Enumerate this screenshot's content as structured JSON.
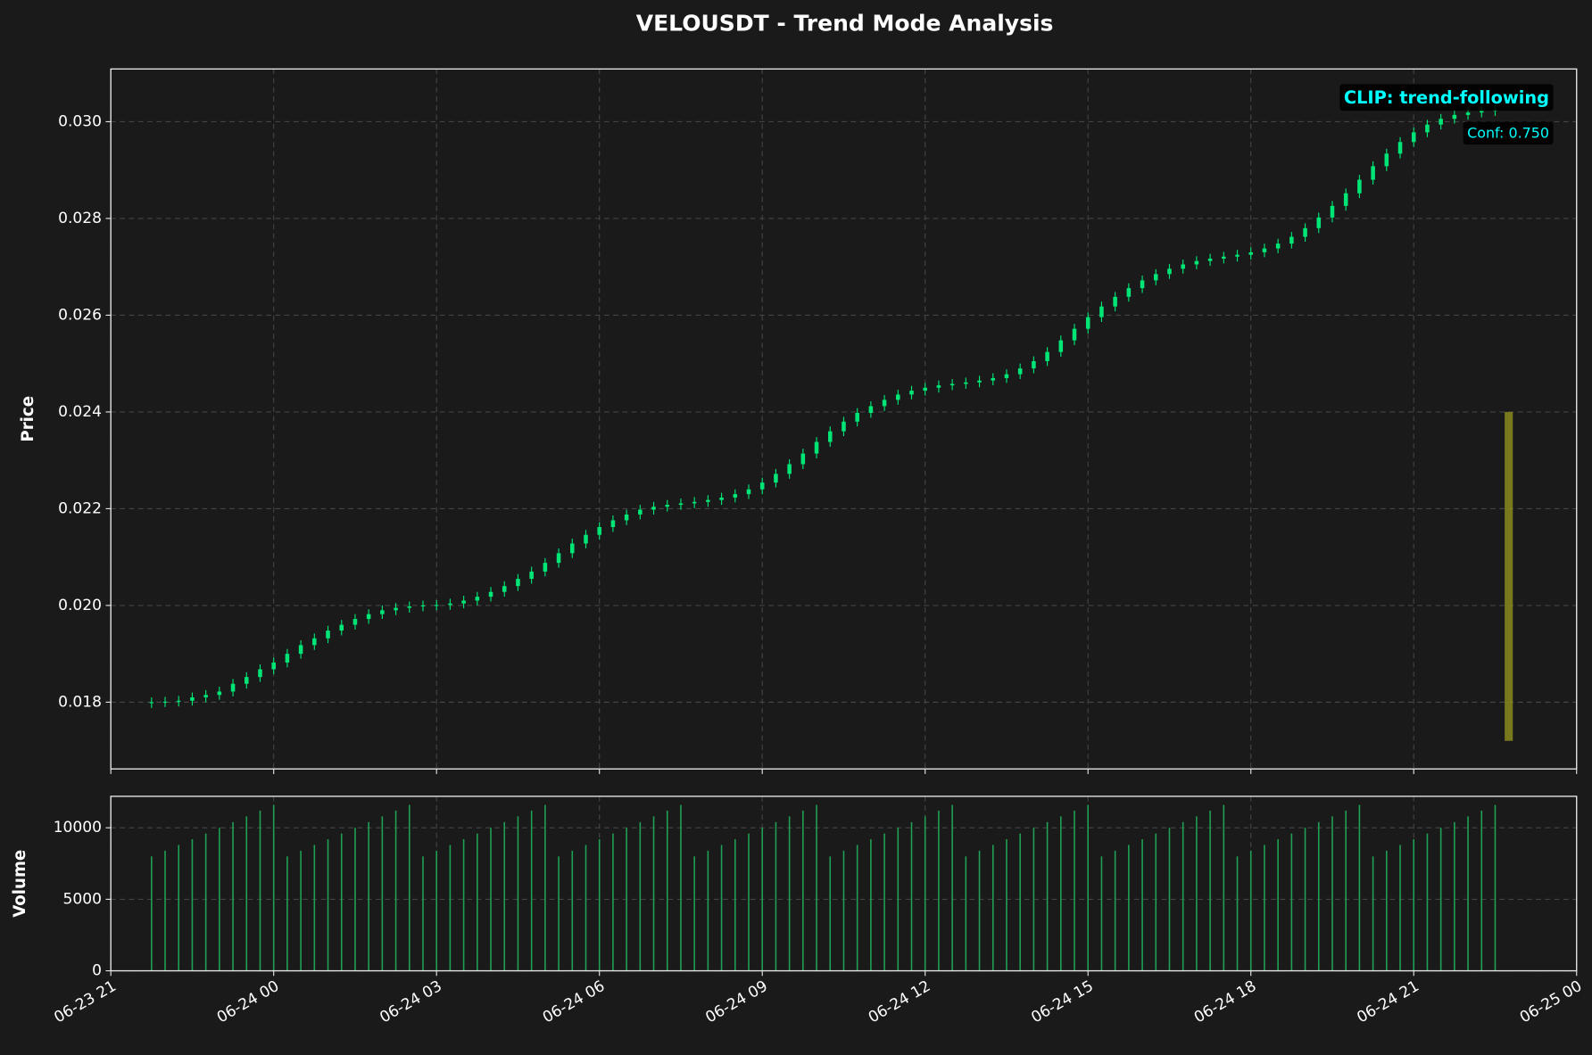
{
  "chart_data": {
    "type": "candlestick",
    "title": "VELOUSDT - Trend Mode Analysis",
    "ylabel": "Price",
    "color": "#00e676",
    "grid": true,
    "xlim": [
      "06-23 21",
      "06-25 00"
    ],
    "xticks": [
      "06-23 21",
      "06-24 00",
      "06-24 03",
      "06-24 06",
      "06-24 09",
      "06-24 12",
      "06-24 15",
      "06-24 18",
      "06-24 21",
      "06-25 00"
    ],
    "ylim": [
      0.01662,
      0.03109
    ],
    "yticks": [
      0.018,
      {
        "value": 0.02,
        "label": "0.020"
      },
      0.022,
      0.024,
      0.026,
      0.028,
      {
        "value": 0.03,
        "label": "0.030"
      }
    ],
    "x": [
      "06-23 21:45",
      "06-23 22:00",
      "06-23 22:15",
      "06-23 22:30",
      "06-23 22:45",
      "06-23 23:00",
      "06-23 23:15",
      "06-23 23:30",
      "06-23 23:45",
      "06-24 00:00",
      "06-24 00:15",
      "06-24 00:30",
      "06-24 00:45",
      "06-24 01:00",
      "06-24 01:15",
      "06-24 01:30",
      "06-24 01:45",
      "06-24 02:00",
      "06-24 02:15",
      "06-24 02:30",
      "06-24 02:45",
      "06-24 03:00",
      "06-24 03:15",
      "06-24 03:30",
      "06-24 03:45",
      "06-24 04:00",
      "06-24 04:15",
      "06-24 04:30",
      "06-24 04:45",
      "06-24 05:00",
      "06-24 05:15",
      "06-24 05:30",
      "06-24 05:45",
      "06-24 06:00",
      "06-24 06:15",
      "06-24 06:30",
      "06-24 06:45",
      "06-24 07:00",
      "06-24 07:15",
      "06-24 07:30",
      "06-24 07:45",
      "06-24 08:00",
      "06-24 08:15",
      "06-24 08:30",
      "06-24 08:45",
      "06-24 09:00",
      "06-24 09:15",
      "06-24 09:30",
      "06-24 09:45",
      "06-24 10:00",
      "06-24 10:15",
      "06-24 10:30",
      "06-24 10:45",
      "06-24 11:00",
      "06-24 11:15",
      "06-24 11:30",
      "06-24 11:45",
      "06-24 12:00",
      "06-24 12:15",
      "06-24 12:30",
      "06-24 12:45",
      "06-24 13:00",
      "06-24 13:15",
      "06-24 13:30",
      "06-24 13:45",
      "06-24 14:00",
      "06-24 14:15",
      "06-24 14:30",
      "06-24 14:45",
      "06-24 15:00",
      "06-24 15:15",
      "06-24 15:30",
      "06-24 15:45",
      "06-24 16:00",
      "06-24 16:15",
      "06-24 16:30",
      "06-24 16:45",
      "06-24 17:00",
      "06-24 17:15",
      "06-24 17:30",
      "06-24 17:45",
      "06-24 18:00",
      "06-24 18:15",
      "06-24 18:30",
      "06-24 18:45",
      "06-24 19:00",
      "06-24 19:15",
      "06-24 19:30",
      "06-24 19:45",
      "06-24 20:00",
      "06-24 20:15",
      "06-24 20:30",
      "06-24 20:45",
      "06-24 21:00",
      "06-24 21:15",
      "06-24 21:30",
      "06-24 21:45",
      "06-24 22:00",
      "06-24 22:15",
      "06-24 22:30"
    ],
    "open": [
      0.01798,
      0.018,
      0.01801,
      0.01803,
      0.0181,
      0.01815,
      0.01822,
      0.01838,
      0.01852,
      0.01868,
      0.01882,
      0.019,
      0.01918,
      0.01932,
      0.01948,
      0.0196,
      0.01972,
      0.01982,
      0.0199,
      0.01995,
      0.01998,
      0.02,
      0.02001,
      0.02004,
      0.0201,
      0.02018,
      0.02028,
      0.0204,
      0.02055,
      0.0207,
      0.02088,
      0.02108,
      0.02128,
      0.02146,
      0.02162,
      0.02176,
      0.02188,
      0.02198,
      0.02204,
      0.02208,
      0.02211,
      0.02214,
      0.02218,
      0.02223,
      0.0223,
      0.0224,
      0.02254,
      0.02272,
      0.02292,
      0.02314,
      0.02338,
      0.0236,
      0.0238,
      0.02398,
      0.02412,
      0.02425,
      0.02436,
      0.02444,
      0.0245,
      0.02455,
      0.02458,
      0.02461,
      0.02465,
      0.0247,
      0.02478,
      0.0249,
      0.02505,
      0.02524,
      0.02548,
      0.02572,
      0.02596,
      0.02618,
      0.02638,
      0.02656,
      0.02672,
      0.02685,
      0.02696,
      0.02705,
      0.02712,
      0.02717,
      0.02721,
      0.02725,
      0.0273,
      0.02738,
      0.02748,
      0.02762,
      0.0278,
      0.02802,
      0.02826,
      0.02852,
      0.0288,
      0.02908,
      0.02934,
      0.02958,
      0.02978,
      0.02994,
      0.03006,
      0.03014,
      0.03019,
      0.03022
    ],
    "high": [
      0.0181,
      0.01811,
      0.01813,
      0.0182,
      0.01825,
      0.01832,
      0.01848,
      0.01862,
      0.01878,
      0.01892,
      0.0191,
      0.01928,
      0.01942,
      0.01958,
      0.0197,
      0.01982,
      0.01992,
      0.02,
      0.02005,
      0.02008,
      0.0201,
      0.02011,
      0.02014,
      0.0202,
      0.02028,
      0.02038,
      0.0205,
      0.02065,
      0.0208,
      0.02098,
      0.02118,
      0.02138,
      0.02156,
      0.02172,
      0.02186,
      0.02198,
      0.02208,
      0.02214,
      0.02218,
      0.02221,
      0.02224,
      0.02228,
      0.02233,
      0.0224,
      0.0225,
      0.02264,
      0.02282,
      0.02302,
      0.02324,
      0.02348,
      0.0237,
      0.0239,
      0.02408,
      0.02422,
      0.02435,
      0.02446,
      0.02454,
      0.0246,
      0.02465,
      0.02468,
      0.02471,
      0.02475,
      0.0248,
      0.02488,
      0.025,
      0.02515,
      0.02534,
      0.02558,
      0.02582,
      0.02606,
      0.02628,
      0.02648,
      0.02666,
      0.02682,
      0.02695,
      0.02706,
      0.02715,
      0.02722,
      0.02727,
      0.02731,
      0.02735,
      0.0274,
      0.02748,
      0.02758,
      0.02772,
      0.0279,
      0.02812,
      0.02836,
      0.02862,
      0.0289,
      0.02918,
      0.02944,
      0.02968,
      0.02988,
      0.03004,
      0.03016,
      0.03024,
      0.03029,
      0.03032,
      0.03034
    ],
    "low": [
      0.01788,
      0.0179,
      0.01791,
      0.01793,
      0.018,
      0.01805,
      0.01812,
      0.01828,
      0.01842,
      0.01858,
      0.01872,
      0.0189,
      0.01908,
      0.01922,
      0.01938,
      0.0195,
      0.01962,
      0.01972,
      0.0198,
      0.01985,
      0.01988,
      0.0199,
      0.01991,
      0.01994,
      0.02,
      0.02008,
      0.02018,
      0.0203,
      0.02045,
      0.0206,
      0.02078,
      0.02098,
      0.02118,
      0.02136,
      0.02152,
      0.02166,
      0.02178,
      0.02188,
      0.02194,
      0.02198,
      0.02201,
      0.02204,
      0.02208,
      0.02213,
      0.0222,
      0.0223,
      0.02244,
      0.02262,
      0.02282,
      0.02304,
      0.02328,
      0.0235,
      0.0237,
      0.02388,
      0.02402,
      0.02415,
      0.02426,
      0.02434,
      0.0244,
      0.02445,
      0.02448,
      0.02451,
      0.02455,
      0.0246,
      0.02468,
      0.0248,
      0.02495,
      0.02514,
      0.02538,
      0.02562,
      0.02586,
      0.02608,
      0.02628,
      0.02646,
      0.02662,
      0.02675,
      0.02686,
      0.02695,
      0.02702,
      0.02707,
      0.02711,
      0.02715,
      0.0272,
      0.02728,
      0.02738,
      0.02752,
      0.0277,
      0.02792,
      0.02816,
      0.02842,
      0.0287,
      0.02898,
      0.02924,
      0.02948,
      0.02968,
      0.02984,
      0.02996,
      0.03004,
      0.03009,
      0.03012
    ],
    "close": [
      0.018,
      0.01801,
      0.01803,
      0.0181,
      0.01815,
      0.01822,
      0.01838,
      0.01852,
      0.01868,
      0.01882,
      0.019,
      0.01918,
      0.01932,
      0.01948,
      0.0196,
      0.01972,
      0.01982,
      0.0199,
      0.01995,
      0.01998,
      0.02,
      0.02001,
      0.02004,
      0.0201,
      0.02018,
      0.02028,
      0.0204,
      0.02055,
      0.0207,
      0.02088,
      0.02108,
      0.02128,
      0.02146,
      0.02162,
      0.02176,
      0.02188,
      0.02198,
      0.02204,
      0.02208,
      0.02211,
      0.02214,
      0.02218,
      0.02223,
      0.0223,
      0.0224,
      0.02254,
      0.02272,
      0.02292,
      0.02314,
      0.02338,
      0.0236,
      0.0238,
      0.02398,
      0.02412,
      0.02425,
      0.02436,
      0.02444,
      0.0245,
      0.02455,
      0.02458,
      0.02461,
      0.02465,
      0.0247,
      0.02478,
      0.0249,
      0.02505,
      0.02524,
      0.02548,
      0.02572,
      0.02596,
      0.02618,
      0.02638,
      0.02656,
      0.02672,
      0.02685,
      0.02696,
      0.02705,
      0.02712,
      0.02717,
      0.02721,
      0.02725,
      0.0273,
      0.02738,
      0.02748,
      0.02762,
      0.0278,
      0.02802,
      0.02826,
      0.02852,
      0.0288,
      0.02908,
      0.02934,
      0.02958,
      0.02978,
      0.02994,
      0.03006,
      0.03014,
      0.03019,
      0.03022,
      0.03024
    ],
    "highlight": {
      "x": "06-24 22:45",
      "low": 0.0172,
      "high": 0.024,
      "color": "#8a8a1e"
    },
    "annotations": [
      {
        "text": "CLIP: trend-following"
      },
      {
        "text": "Conf: 0.750"
      }
    ],
    "volume": {
      "ylabel": "Volume",
      "color": "#1fa055",
      "ylim": [
        0,
        12200
      ],
      "yticks": [
        0,
        5000,
        10000
      ],
      "values": [
        8000,
        8400,
        8800,
        9200,
        9600,
        10000,
        10400,
        10800,
        11200,
        11600,
        8000,
        8400,
        8800,
        9200,
        9600,
        10000,
        10400,
        10800,
        11200,
        11600,
        8000,
        8400,
        8800,
        9200,
        9600,
        10000,
        10400,
        10800,
        11200,
        11600,
        8000,
        8400,
        8800,
        9200,
        9600,
        10000,
        10400,
        10800,
        11200,
        11600,
        8000,
        8400,
        8800,
        9200,
        9600,
        10000,
        10400,
        10800,
        11200,
        11600,
        8000,
        8400,
        8800,
        9200,
        9600,
        10000,
        10400,
        10800,
        11200,
        11600,
        8000,
        8400,
        8800,
        9200,
        9600,
        10000,
        10400,
        10800,
        11200,
        11600,
        8000,
        8400,
        8800,
        9200,
        9600,
        10000,
        10400,
        10800,
        11200,
        11600,
        8000,
        8400,
        8800,
        9200,
        9600,
        10000,
        10400,
        10800,
        11200,
        11600,
        8000,
        8400,
        8800,
        9200,
        9600,
        10000,
        10400,
        10800,
        11200,
        11600
      ]
    }
  }
}
